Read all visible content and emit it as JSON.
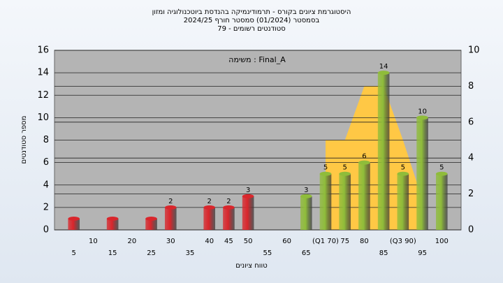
{
  "chart_data": {
    "type": "bar",
    "title": [
      "היסטוגרמת ציונים בקורס - תרמודינמיקה בהנדסת ביוטכנולוגיה ומזון",
      "בסמסטר  (01/2024)  סמסטר חורף 2024/25",
      "סטודנטים רשומים - 79"
    ],
    "annotation": "משימה : Final_A",
    "x_label": "טווח ציונים",
    "y_label": "מספר סטודנטים",
    "categories": [
      "5",
      "10",
      "15",
      "20",
      "25",
      "30",
      "35",
      "40",
      "45",
      "50",
      "55",
      "60",
      "65",
      "(Q1 70)",
      "75",
      "80",
      "85",
      "(Q3 90)",
      "95",
      "100"
    ],
    "values": [
      1,
      0,
      1,
      0,
      1,
      2,
      0,
      2,
      2,
      3,
      0,
      0,
      3,
      5,
      5,
      6,
      14,
      5,
      10,
      5
    ],
    "colors": [
      "#d9262c",
      "#d9262c",
      "#d9262c",
      "#d9262c",
      "#d9262c",
      "#d9262c",
      "#d9262c",
      "#d9262c",
      "#d9262c",
      "#d9262c",
      "#d9262c",
      "#d9262c",
      "#8fbc3a",
      "#8fbc3a",
      "#8fbc3a",
      "#8fbc3a",
      "#8fbc3a",
      "#8fbc3a",
      "#8fbc3a",
      "#8fbc3a"
    ],
    "area": {
      "axis": "y2",
      "color": "#ffc845",
      "values": [
        null,
        null,
        null,
        null,
        null,
        null,
        null,
        null,
        null,
        null,
        null,
        null,
        null,
        5,
        5,
        8,
        8,
        5,
        1.7,
        null
      ]
    },
    "ylim": [
      0,
      16
    ],
    "yticks": [
      0,
      2,
      4,
      6,
      8,
      10,
      12,
      14,
      16
    ],
    "y2lim": [
      0,
      10
    ],
    "y2ticks": [
      0,
      2,
      4,
      6,
      8,
      10
    ],
    "grid": true
  }
}
